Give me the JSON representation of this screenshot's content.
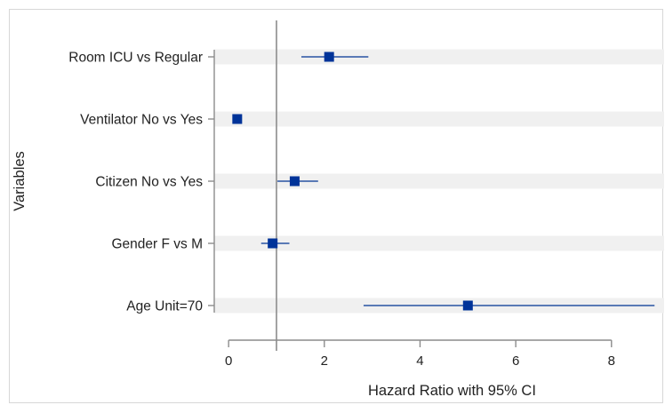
{
  "chart_data": {
    "type": "forest",
    "title": "",
    "xlabel": "Hazard Ratio with 95% CI",
    "ylabel": "Variables",
    "xlim": [
      -0.3,
      9.1
    ],
    "xticks": [
      0,
      2,
      4,
      6,
      8
    ],
    "reference_line": 1,
    "grid": false,
    "categories": [
      "Room ICU vs Regular",
      "Ventilator No vs Yes",
      "Citizen No vs Yes",
      "Gender F vs M",
      "Age Unit=70"
    ],
    "estimates": [
      2.1,
      0.18,
      1.38,
      0.92,
      5.0
    ],
    "ci_lower": [
      1.52,
      0.13,
      1.02,
      0.68,
      2.82
    ],
    "ci_upper": [
      2.92,
      0.22,
      1.87,
      1.27,
      8.9
    ],
    "colors": {
      "point": "#003399",
      "ci": "#2952a3",
      "band": "#f0f0f0",
      "axis": "#8c8c8c"
    }
  }
}
